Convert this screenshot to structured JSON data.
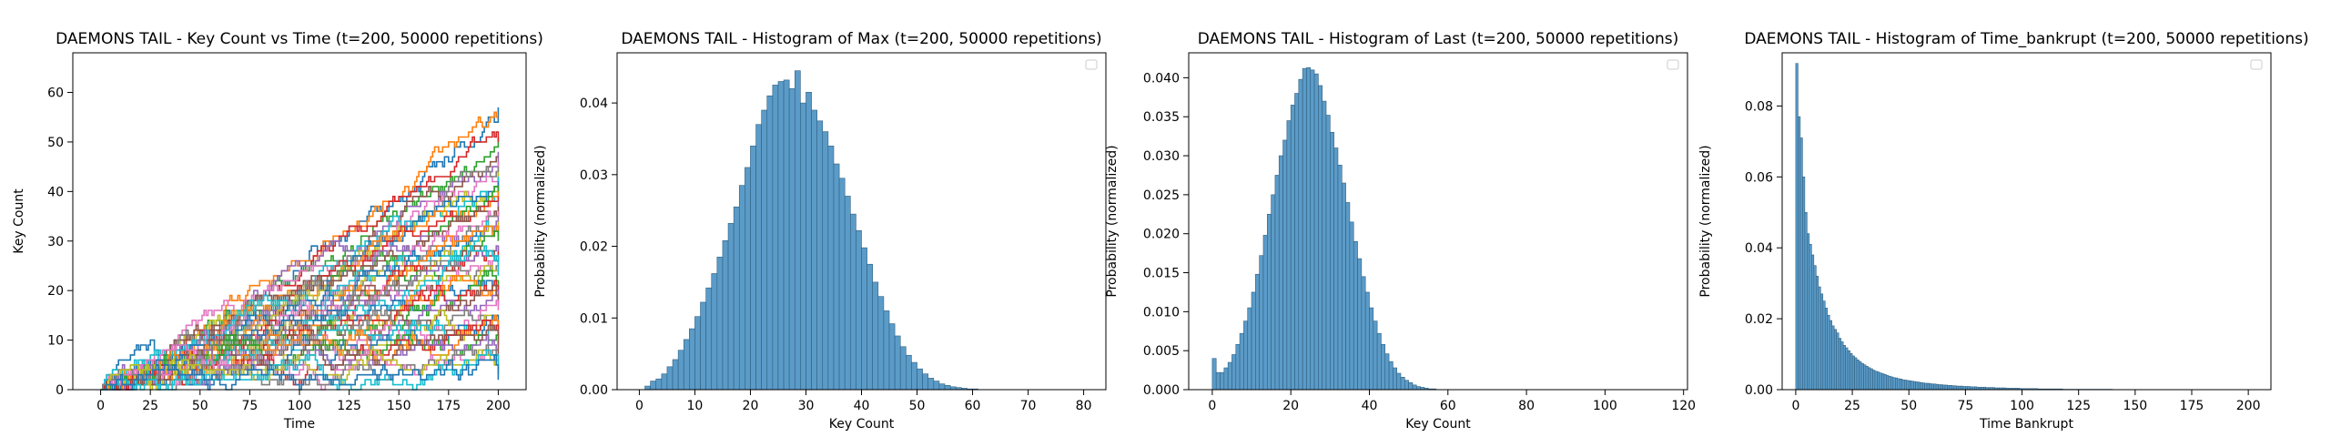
{
  "chart_data": [
    {
      "type": "line",
      "title": "DAEMONS TAIL - Key Count vs Time (t=200, 50000 repetitions)",
      "xlabel": "Time",
      "ylabel": "Key Count",
      "xlim": [
        -14,
        214
      ],
      "ylim": [
        0,
        68
      ],
      "xticks": [
        0,
        25,
        50,
        75,
        100,
        125,
        150,
        175,
        200
      ],
      "yticks": [
        0,
        10,
        20,
        30,
        40,
        50,
        60
      ],
      "legend": "none",
      "note_series": "many overlapping random-walk trajectories from 0 to 200; max endpoint about 57",
      "series_endpoints": [
        57,
        55,
        51,
        50,
        48,
        47,
        46,
        45,
        44,
        43,
        42,
        41,
        40,
        39,
        38,
        37,
        36,
        35,
        34,
        33,
        32,
        31,
        30,
        29,
        28,
        27,
        26,
        25,
        24,
        23,
        22,
        21,
        20,
        19,
        18,
        17,
        16,
        15,
        14,
        13,
        12,
        11,
        10,
        9,
        8,
        7,
        6,
        5,
        4,
        3,
        2
      ]
    },
    {
      "type": "bar",
      "title": "DAEMONS TAIL - Histogram of Max (t=200, 50000 repetitions)",
      "xlabel": "Key Count",
      "ylabel": "Probability (normalized)",
      "xlim": [
        -4,
        84
      ],
      "ylim": [
        0,
        0.047
      ],
      "xticks": [
        0,
        10,
        20,
        30,
        40,
        50,
        60,
        70,
        80
      ],
      "yticks": [
        "0.00",
        "0.01",
        "0.02",
        "0.03",
        "0.04"
      ],
      "legend": "top-right (empty)",
      "bin_start": 1,
      "bin_width": 1,
      "values": [
        0.0005,
        0.0012,
        0.0015,
        0.0022,
        0.0032,
        0.0042,
        0.0055,
        0.007,
        0.0085,
        0.0102,
        0.0122,
        0.0142,
        0.0162,
        0.0185,
        0.0208,
        0.0232,
        0.0255,
        0.0285,
        0.031,
        0.034,
        0.037,
        0.039,
        0.041,
        0.0425,
        0.043,
        0.0432,
        0.042,
        0.0445,
        0.04,
        0.0415,
        0.039,
        0.0375,
        0.036,
        0.034,
        0.0315,
        0.0295,
        0.027,
        0.0245,
        0.0222,
        0.0198,
        0.0175,
        0.015,
        0.013,
        0.011,
        0.0092,
        0.0075,
        0.006,
        0.0048,
        0.0038,
        0.0029,
        0.0022,
        0.0016,
        0.0012,
        0.0008,
        0.0006,
        0.0004,
        0.0003,
        0.0002,
        0.0001,
        0.0001
      ]
    },
    {
      "type": "bar",
      "title": "DAEMONS TAIL - Histogram of Last (t=200, 50000 repetitions)",
      "xlabel": "Key Count",
      "ylabel": "Probability (normalized)",
      "xlim": [
        -6,
        121
      ],
      "ylim": [
        0,
        0.0432
      ],
      "xticks": [
        0,
        20,
        40,
        60,
        80,
        100,
        120
      ],
      "yticks": [
        "0.000",
        "0.005",
        "0.010",
        "0.015",
        "0.020",
        "0.025",
        "0.030",
        "0.035",
        "0.040"
      ],
      "legend": "top-right (empty)",
      "bin_start": 0,
      "bin_width": 1,
      "values": [
        0.004,
        0.0022,
        0.0022,
        0.0028,
        0.0035,
        0.0045,
        0.0058,
        0.0072,
        0.0088,
        0.0105,
        0.0125,
        0.0148,
        0.0172,
        0.0198,
        0.0225,
        0.025,
        0.0275,
        0.03,
        0.032,
        0.0345,
        0.0365,
        0.038,
        0.0398,
        0.0412,
        0.0413,
        0.041,
        0.0405,
        0.039,
        0.037,
        0.0352,
        0.033,
        0.031,
        0.0288,
        0.0265,
        0.024,
        0.0215,
        0.019,
        0.0168,
        0.0145,
        0.0125,
        0.0105,
        0.0088,
        0.0072,
        0.0058,
        0.0046,
        0.0036,
        0.0028,
        0.0021,
        0.0016,
        0.0012,
        0.0009,
        0.0006,
        0.0004,
        0.0003,
        0.0002,
        0.0001,
        0.0001
      ]
    },
    {
      "type": "bar",
      "title": "DAEMONS TAIL - Histogram of Time_bankrupt (t=200, 50000 repetitions)",
      "xlabel": "Time Bankrupt",
      "ylabel": "Probability (normalized)",
      "xlim": [
        -6,
        210
      ],
      "ylim": [
        0,
        0.095
      ],
      "xticks": [
        0,
        25,
        50,
        75,
        100,
        125,
        150,
        175,
        200
      ],
      "yticks": [
        "0.00",
        "0.02",
        "0.04",
        "0.06",
        "0.08"
      ],
      "legend": "top-right (empty)",
      "bin_start": 0,
      "bin_width": 1,
      "values": [
        0.092,
        0.077,
        0.071,
        0.06,
        0.05,
        0.044,
        0.041,
        0.038,
        0.035,
        0.032,
        0.029,
        0.027,
        0.025,
        0.023,
        0.021,
        0.0195,
        0.018,
        0.017,
        0.016,
        0.0145,
        0.0135,
        0.0125,
        0.0118,
        0.011,
        0.0102,
        0.0095,
        0.009,
        0.0084,
        0.0079,
        0.0074,
        0.007,
        0.0066,
        0.0062,
        0.0059,
        0.0055,
        0.0052,
        0.005,
        0.0047,
        0.0045,
        0.0043,
        0.004,
        0.0038,
        0.0036,
        0.0034,
        0.0033,
        0.0031,
        0.003,
        0.0028,
        0.0027,
        0.0026,
        0.0025,
        0.0024,
        0.0023,
        0.0022,
        0.0021,
        0.002,
        0.0019,
        0.0018,
        0.0018,
        0.0017,
        0.0016,
        0.0016,
        0.0015,
        0.0014,
        0.0014,
        0.0013,
        0.0013,
        0.0012,
        0.0012,
        0.0011,
        0.0011,
        0.001,
        0.001,
        0.001,
        0.0009,
        0.0009,
        0.0009,
        0.0008,
        0.0008,
        0.0008,
        0.0007,
        0.0007,
        0.0007,
        0.0007,
        0.0006,
        0.0006,
        0.0006,
        0.0006,
        0.0005,
        0.0005,
        0.0005,
        0.0005,
        0.0005,
        0.0004,
        0.0004,
        0.0004,
        0.0004,
        0.0004,
        0.0004,
        0.0003,
        0.0003,
        0.0003,
        0.0003,
        0.0003,
        0.0003,
        0.0003,
        0.0003,
        0.0002,
        0.0002,
        0.0002,
        0.0002,
        0.0002,
        0.0002,
        0.0002,
        0.0002,
        0.0002,
        0.0002,
        0.0002,
        0.0001,
        0.0001,
        0.0001,
        0.0001,
        0.0001,
        0.0001,
        0.0001,
        0.0001,
        0.0001,
        0.0001,
        0.0001,
        0.0001,
        0.0001,
        0.0001,
        0.0001,
        0.0001,
        0.0001,
        0.0001,
        0.0001,
        0.0001,
        0.0001,
        0.0001
      ]
    }
  ],
  "colors": {
    "bar_fill": "#5b9bc8",
    "bar_edge": "#2f5f80",
    "line_palette": [
      "#1f77b4",
      "#ff7f0e",
      "#2ca02c",
      "#d62728",
      "#9467bd",
      "#8c564b",
      "#e377c2",
      "#7f7f7f",
      "#bcbd22",
      "#17becf"
    ]
  }
}
